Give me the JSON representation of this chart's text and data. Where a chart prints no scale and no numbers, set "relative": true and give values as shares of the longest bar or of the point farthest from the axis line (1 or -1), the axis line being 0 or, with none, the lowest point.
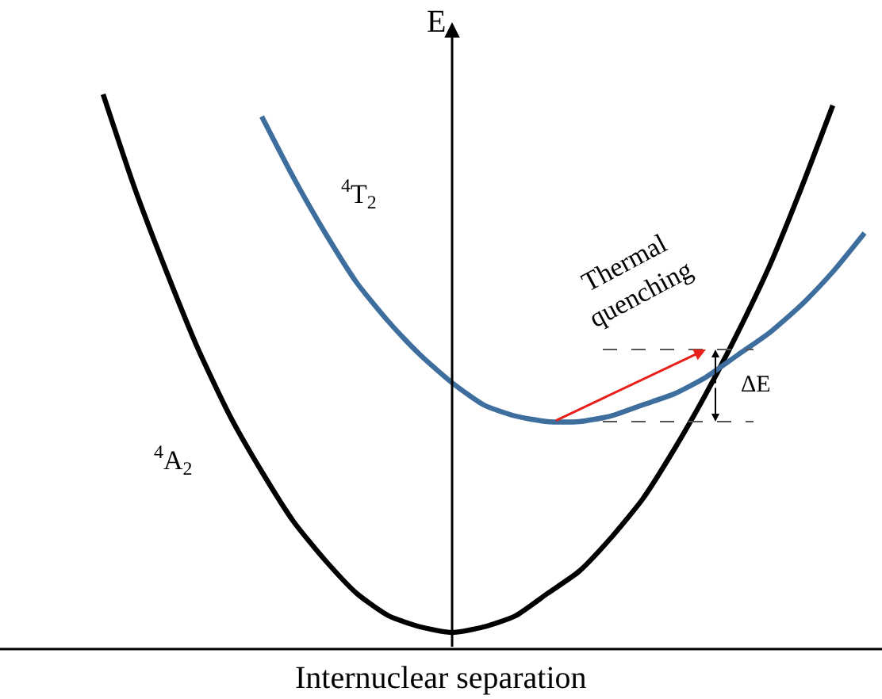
{
  "chart_data": {
    "type": "line",
    "relative": true,
    "xlabel": "Internuclear separation",
    "ylabel": "E",
    "categories": [
      null,
      null,
      null,
      null,
      null,
      null,
      null,
      null,
      null,
      null,
      null,
      null,
      null,
      null,
      null,
      null,
      null,
      null,
      null,
      null,
      null,
      null,
      null,
      null,
      null
    ],
    "series": [
      {
        "color": "#000000",
        "values": [
          1.0,
          0.83,
          0.68,
          0.54,
          0.42,
          0.32,
          0.23,
          0.16,
          0.1,
          0.06,
          0.04,
          0.03,
          0.04,
          0.06,
          0.1,
          0.14,
          0.2,
          0.27,
          0.36,
          0.46,
          0.57,
          0.69,
          0.83,
          0.98,
          null
        ]
      },
      {
        "color": "#3d6e9e",
        "values": [
          null,
          null,
          null,
          null,
          null,
          0.96,
          0.85,
          0.75,
          0.66,
          0.59,
          0.53,
          0.48,
          0.44,
          0.42,
          0.41,
          0.41,
          0.42,
          0.44,
          0.46,
          0.49,
          0.53,
          0.57,
          0.62,
          0.68,
          0.75
        ]
      }
    ],
    "ref_lines": [
      {
        "axis": "y",
        "value": 0.54,
        "label": null,
        "color": "#555555",
        "line_style": "dashed"
      },
      {
        "axis": "y",
        "value": 0.41,
        "label": null,
        "color": "#555555",
        "line_style": "dashed"
      }
    ],
    "annotations": [
      "$^{4}$T$_{2}$",
      "$^{4}$A$_{2}$",
      "Thermal\nquenching",
      "ΔE"
    ],
    "marker": "none",
    "line_style": "solid"
  }
}
